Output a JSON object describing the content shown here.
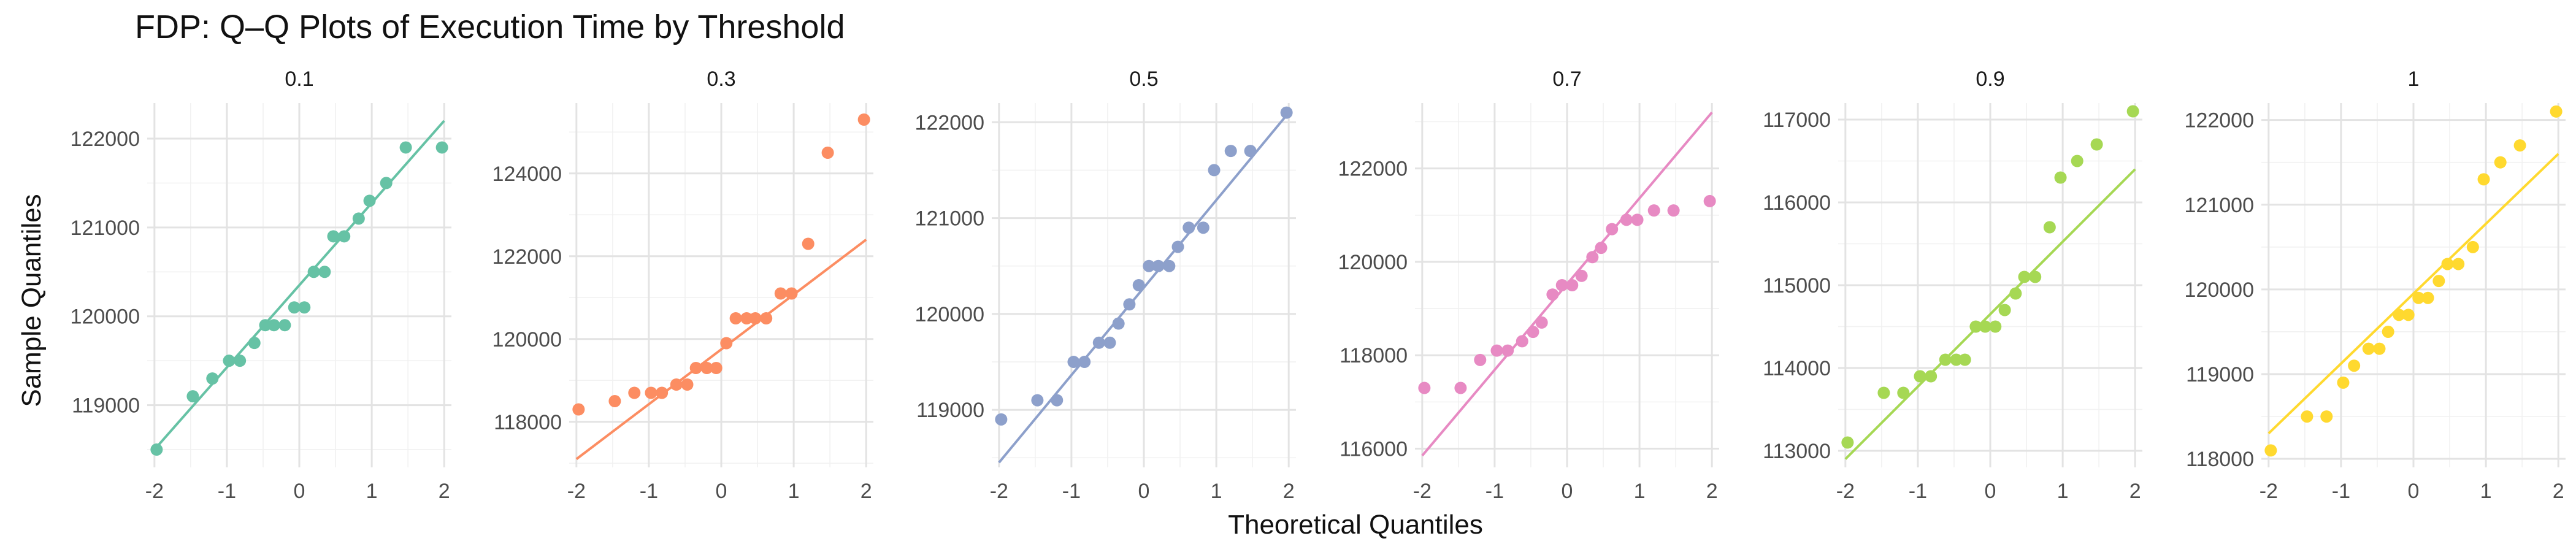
{
  "chart_data": {
    "type": "scatter",
    "title": "FDP: Q–Q Plots of Execution Time by Threshold",
    "xlabel": "Theoretical Quantiles",
    "ylabel": "Sample Quantiles",
    "x_ticks": [
      -2,
      -1,
      0,
      1,
      2
    ],
    "x_tick_labels": [
      "-2",
      "-1",
      "0",
      "1",
      "2"
    ],
    "xlim": [
      -2.1,
      2.1
    ],
    "grid": true,
    "legend": "none",
    "panels": [
      {
        "label": "0.1",
        "color": "#66C2A5",
        "ylim": [
          118300,
          122400
        ],
        "y_ticks": [
          119000,
          120000,
          121000,
          122000
        ],
        "y_tick_labels": [
          "119000",
          "120000",
          "121000",
          "122000"
        ],
        "line": {
          "x": [
            -2,
            2
          ],
          "y": [
            118500,
            122200
          ]
        },
        "points": {
          "x": [
            -1.97,
            -1.47,
            -1.2,
            -0.97,
            -0.82,
            -0.62,
            -0.47,
            -0.35,
            -0.2,
            -0.07,
            0.07,
            0.2,
            0.35,
            0.47,
            0.62,
            0.82,
            0.97,
            1.2,
            1.47,
            1.97
          ],
          "y": [
            118500,
            119100,
            119300,
            119500,
            119500,
            119700,
            119900,
            119900,
            119900,
            120100,
            120100,
            120500,
            120500,
            120900,
            120900,
            121100,
            121300,
            121500,
            121900,
            121900
          ]
        }
      },
      {
        "label": "0.3",
        "color": "#FC8D62",
        "ylim": [
          116900,
          125700
        ],
        "y_ticks": [
          118000,
          120000,
          122000,
          124000
        ],
        "y_tick_labels": [
          "118000",
          "120000",
          "122000",
          "124000"
        ],
        "line": {
          "x": [
            -2,
            2
          ],
          "y": [
            117100,
            122400
          ]
        },
        "points": {
          "x": [
            -1.97,
            -1.47,
            -1.2,
            -0.97,
            -0.82,
            -0.62,
            -0.47,
            -0.35,
            -0.2,
            -0.07,
            0.07,
            0.2,
            0.35,
            0.47,
            0.62,
            0.82,
            0.97,
            1.2,
            1.47,
            1.97
          ],
          "y": [
            118300,
            118500,
            118700,
            118700,
            118700,
            118900,
            118900,
            119300,
            119300,
            119300,
            119900,
            120500,
            120500,
            120500,
            120500,
            121100,
            121100,
            122300,
            124500,
            125300
          ]
        }
      },
      {
        "label": "0.5",
        "color": "#8DA0CB",
        "ylim": [
          118400,
          122200
        ],
        "y_ticks": [
          119000,
          120000,
          121000,
          122000
        ],
        "y_tick_labels": [
          "119000",
          "120000",
          "121000",
          "122000"
        ],
        "line": {
          "x": [
            -2,
            2
          ],
          "y": [
            118450,
            122100
          ]
        },
        "points": {
          "x": [
            -1.97,
            -1.47,
            -1.2,
            -0.97,
            -0.82,
            -0.62,
            -0.47,
            -0.35,
            -0.2,
            -0.07,
            0.07,
            0.2,
            0.35,
            0.47,
            0.62,
            0.82,
            0.97,
            1.2,
            1.47,
            1.97
          ],
          "y": [
            118900,
            119100,
            119100,
            119500,
            119500,
            119700,
            119700,
            119900,
            120100,
            120300,
            120500,
            120500,
            120500,
            120700,
            120900,
            120900,
            121500,
            121700,
            121700,
            122100
          ]
        }
      },
      {
        "label": "0.7",
        "color": "#E78AC3",
        "ylim": [
          115600,
          123400
        ],
        "y_ticks": [
          116000,
          118000,
          120000,
          122000
        ],
        "y_tick_labels": [
          "116000",
          "118000",
          "120000",
          "122000"
        ],
        "line": {
          "x": [
            -2,
            2
          ],
          "y": [
            115850,
            123200
          ]
        },
        "points": {
          "x": [
            -1.97,
            -1.47,
            -1.2,
            -0.97,
            -0.82,
            -0.62,
            -0.47,
            -0.35,
            -0.2,
            -0.07,
            0.07,
            0.2,
            0.35,
            0.47,
            0.62,
            0.82,
            0.97,
            1.2,
            1.47,
            1.97
          ],
          "y": [
            117300,
            117300,
            117900,
            118100,
            118100,
            118300,
            118500,
            118700,
            119300,
            119500,
            119500,
            119700,
            120100,
            120300,
            120700,
            120900,
            120900,
            121100,
            121100,
            121300
          ]
        }
      },
      {
        "label": "0.9",
        "color": "#A6D854",
        "ylim": [
          112800,
          117200
        ],
        "y_ticks": [
          113000,
          114000,
          115000,
          116000,
          117000
        ],
        "y_tick_labels": [
          "113000",
          "114000",
          "115000",
          "116000",
          "117000"
        ],
        "line": {
          "x": [
            -2,
            2
          ],
          "y": [
            112900,
            116400
          ]
        },
        "points": {
          "x": [
            -1.97,
            -1.47,
            -1.2,
            -0.97,
            -0.82,
            -0.62,
            -0.47,
            -0.35,
            -0.2,
            -0.07,
            0.07,
            0.2,
            0.35,
            0.47,
            0.62,
            0.82,
            0.97,
            1.2,
            1.47,
            1.97
          ],
          "y": [
            113100,
            113700,
            113700,
            113900,
            113900,
            114100,
            114100,
            114100,
            114500,
            114500,
            114500,
            114700,
            114900,
            115100,
            115100,
            115700,
            116300,
            116500,
            116700,
            117100
          ]
        }
      },
      {
        "label": "1",
        "color": "#FFD92F",
        "ylim": [
          117900,
          122200
        ],
        "y_ticks": [
          118000,
          119000,
          120000,
          121000,
          122000
        ],
        "y_tick_labels": [
          "118000",
          "119000",
          "120000",
          "121000",
          "122000"
        ],
        "line": {
          "x": [
            -2,
            2
          ],
          "y": [
            118300,
            121600
          ]
        },
        "points": {
          "x": [
            -1.97,
            -1.47,
            -1.2,
            -0.97,
            -0.82,
            -0.62,
            -0.47,
            -0.35,
            -0.2,
            -0.07,
            0.07,
            0.2,
            0.35,
            0.47,
            0.62,
            0.82,
            0.97,
            1.2,
            1.47,
            1.97
          ],
          "y": [
            118100,
            118500,
            118500,
            118900,
            119100,
            119300,
            119300,
            119500,
            119700,
            119700,
            119900,
            119900,
            120100,
            120300,
            120300,
            120500,
            121300,
            121500,
            121700,
            122100
          ]
        }
      }
    ]
  }
}
